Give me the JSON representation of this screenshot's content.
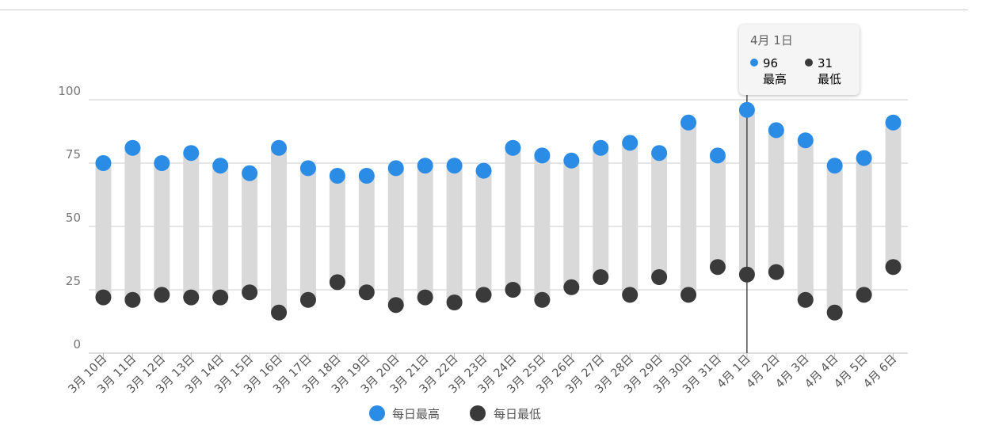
{
  "chart_data": {
    "type": "range-bar",
    "categories": [
      "3月 10日",
      "3月 11日",
      "3月 12日",
      "3月 13日",
      "3月 14日",
      "3月 15日",
      "3月 16日",
      "3月 17日",
      "3月 18日",
      "3月 19日",
      "3月 20日",
      "3月 21日",
      "3月 22日",
      "3月 23日",
      "3月 24日",
      "3月 25日",
      "3月 26日",
      "3月 27日",
      "3月 28日",
      "3月 29日",
      "3月 30日",
      "3月 31日",
      "4月 1日",
      "4月 2日",
      "4月 3日",
      "4月 4日",
      "4月 5日",
      "4月 6日"
    ],
    "series": [
      {
        "name": "每日最高",
        "color": "#2b8ce6",
        "values": [
          75,
          81,
          75,
          79,
          74,
          71,
          81,
          73,
          70,
          70,
          73,
          74,
          74,
          72,
          81,
          78,
          76,
          81,
          83,
          79,
          91,
          78,
          96,
          88,
          84,
          74,
          77,
          91
        ]
      },
      {
        "name": "每日最低",
        "color": "#3a3a3a",
        "values": [
          22,
          21,
          23,
          22,
          22,
          24,
          16,
          21,
          28,
          24,
          19,
          22,
          20,
          23,
          25,
          21,
          26,
          30,
          23,
          30,
          23,
          34,
          31,
          32,
          21,
          16,
          23,
          34
        ]
      }
    ],
    "range_bar_color": "#d9d9d9",
    "ylim": [
      0,
      100
    ],
    "yticks": [
      0,
      25,
      50,
      75,
      100
    ],
    "grid": true,
    "legend": "bottom"
  },
  "tooltip": {
    "title": "4月 1日",
    "category_index": 22,
    "items": [
      {
        "value": "96",
        "name": "最高",
        "color": "#2b8ce6"
      },
      {
        "value": "31",
        "name": "最低",
        "color": "#3a3a3a"
      }
    ]
  }
}
